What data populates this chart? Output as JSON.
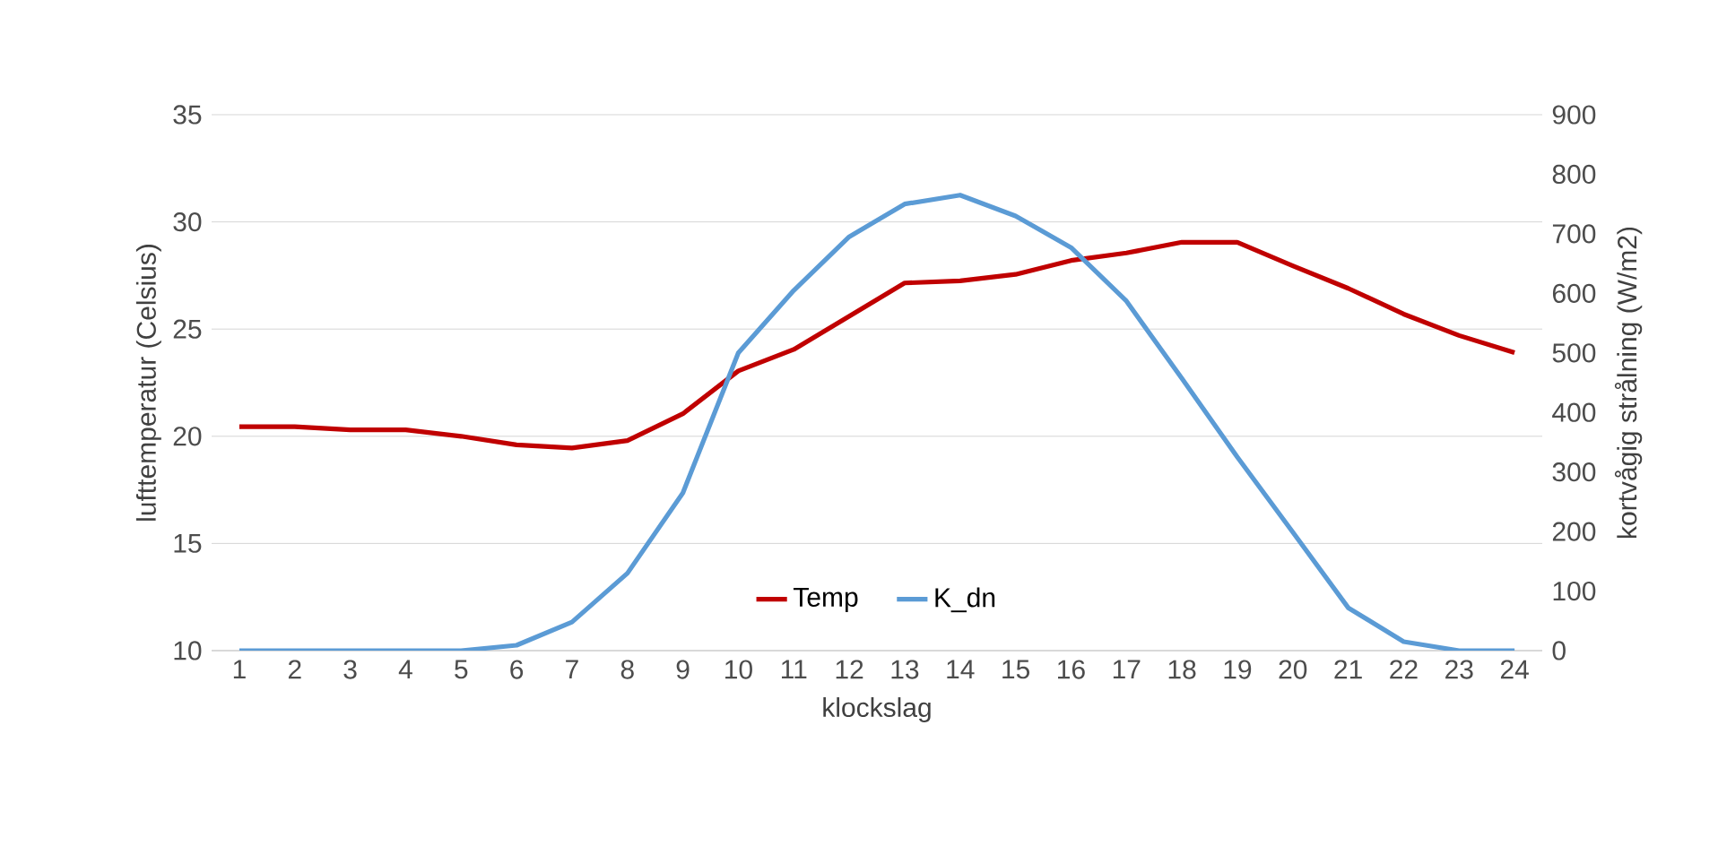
{
  "chart_data": {
    "type": "line",
    "xlabel": "klockslag",
    "ylabel": "lufttemperatur (Celsius)",
    "y2label": "kortvågig strålning (W/m2)",
    "categories": [
      "1",
      "2",
      "3",
      "4",
      "5",
      "6",
      "7",
      "8",
      "9",
      "10",
      "11",
      "12",
      "13",
      "14",
      "15",
      "16",
      "17",
      "18",
      "19",
      "20",
      "21",
      "22",
      "23",
      "24"
    ],
    "series": [
      {
        "name": "Temp",
        "color": "#c00000",
        "values": [
          20.45,
          20.45,
          20.3,
          20.3,
          20.0,
          19.6,
          19.45,
          19.8,
          21.05,
          23.05,
          24.05,
          25.6,
          27.15,
          27.25,
          27.55,
          28.2,
          28.55,
          29.05,
          29.05,
          27.95,
          26.9,
          25.7,
          24.7,
          23.9
        ]
      },
      {
        "name": "K_dn",
        "color": "#5b9bd5",
        "axis": "y2",
        "values": [
          0,
          0,
          0,
          0,
          0,
          9,
          48,
          130,
          265,
          500,
          605,
          695,
          750,
          765,
          730,
          677,
          587,
          457,
          325,
          199,
          72,
          15,
          0,
          0
        ]
      }
    ],
    "ylim": [
      10,
      35
    ],
    "yticks": [
      10,
      15,
      20,
      25,
      30,
      35
    ],
    "y2lim": [
      0,
      900
    ],
    "y2ticks": [
      0,
      100,
      200,
      300,
      400,
      500,
      600,
      700,
      800,
      900
    ],
    "grid": "y",
    "legend": "bottom"
  }
}
